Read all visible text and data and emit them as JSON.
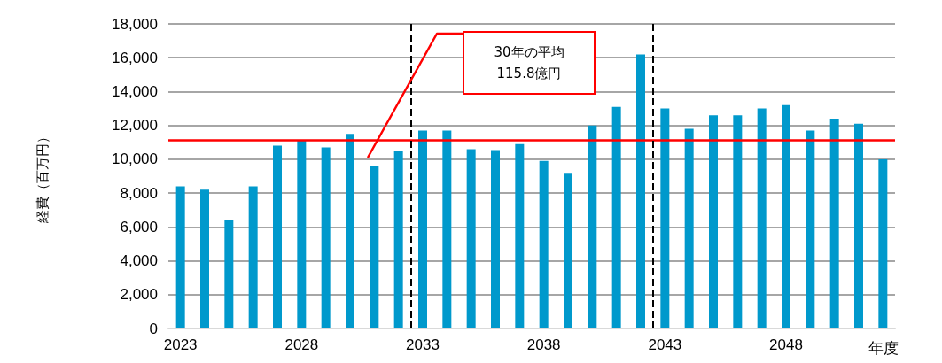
{
  "chart_data": {
    "type": "bar",
    "ylabel": "経費（百万円）",
    "xlabel": "年度",
    "x": [
      2023,
      2024,
      2025,
      2026,
      2027,
      2028,
      2029,
      2030,
      2031,
      2032,
      2033,
      2034,
      2035,
      2036,
      2037,
      2038,
      2039,
      2040,
      2041,
      2042,
      2043,
      2044,
      2045,
      2046,
      2047,
      2048,
      2049,
      2050,
      2051,
      2052
    ],
    "values": [
      8400,
      8200,
      6400,
      8400,
      10800,
      11100,
      10700,
      11500,
      9600,
      10500,
      11700,
      11700,
      10600,
      10550,
      10900,
      9900,
      9200,
      12000,
      13100,
      16200,
      13000,
      11800,
      12600,
      12600,
      13000,
      13200,
      11700,
      12400,
      12100,
      10000
    ],
    "color": "#0099cc",
    "xlim": [
      2022.5,
      2052.5
    ],
    "xticks": [
      2023,
      2028,
      2033,
      2038,
      2043,
      2048
    ],
    "ylim": [
      0,
      18000
    ],
    "yticks": [
      0,
      {
        "value": 2000,
        "label": "2,000"
      },
      {
        "value": 4000,
        "label": "4,000"
      },
      {
        "value": 6000,
        "label": "6,000"
      },
      {
        "value": 8000,
        "label": "8,000"
      },
      {
        "value": 10000,
        "label": "10,000"
      },
      {
        "value": 12000,
        "label": "12,000"
      },
      {
        "value": 14000,
        "label": "14,000"
      },
      {
        "value": 16000,
        "label": "16,000"
      },
      {
        "value": 18000,
        "label": "18,000"
      }
    ],
    "grid": "y",
    "ref_lines": [
      {
        "axis": "y",
        "value": 11150,
        "color": "#ff0000",
        "line_style": "solid"
      },
      {
        "axis": "x",
        "value": 2032.5,
        "color": "#000000",
        "line_style": "dashed"
      },
      {
        "axis": "x",
        "value": 2042.5,
        "color": "#000000",
        "line_style": "dashed"
      }
    ],
    "annotations": [
      "30年の平均\n115.8億円"
    ]
  }
}
